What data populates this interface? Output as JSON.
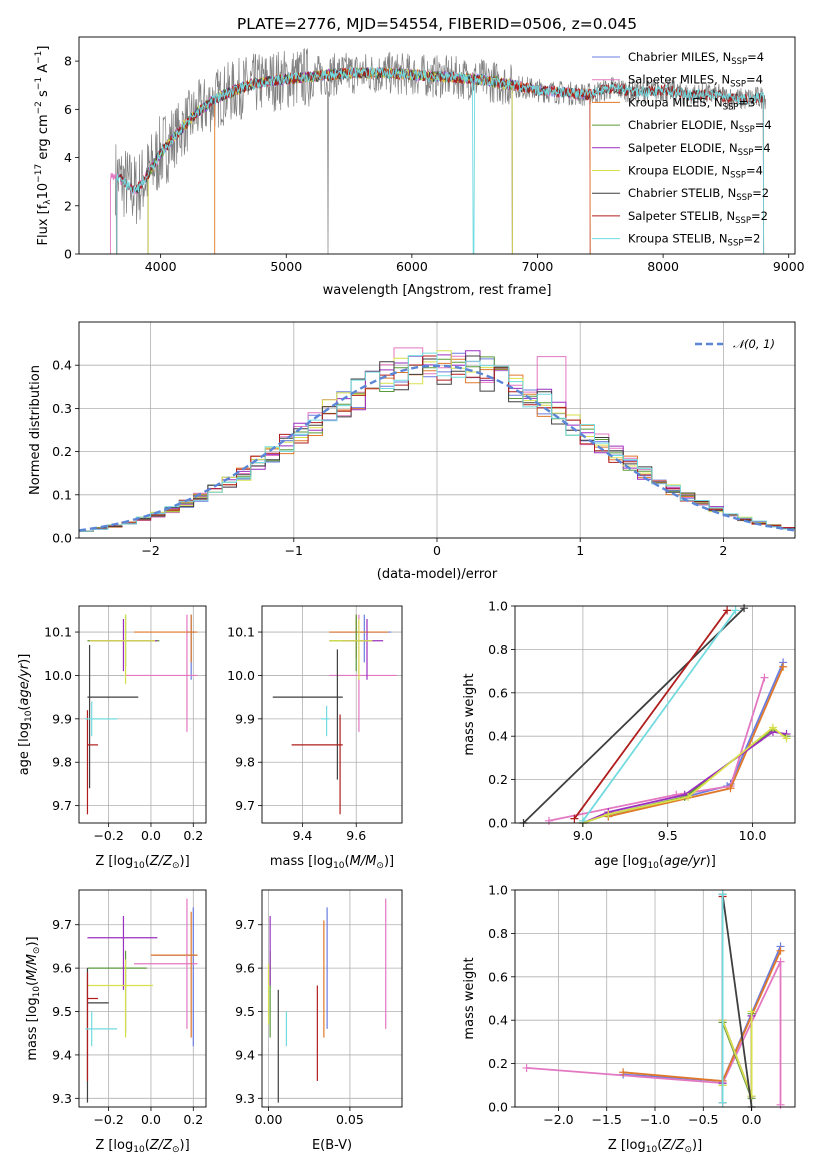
{
  "figure_title": "PLATE=2776, MJD=54554, FIBERID=0506, z=0.045",
  "colors": {
    "chabrier_miles": "#6a7de0",
    "salpeter_miles": "#e377c2",
    "kroupa_miles": "#e0782a",
    "chabrier_elodie": "#5a9a3a",
    "salpeter_elodie": "#9b2fbf",
    "kroupa_elodie": "#d7e04a",
    "chabrier_stelib": "#3f3f3f",
    "salpeter_stelib": "#b01d1d",
    "kroupa_stelib": "#72dbe0",
    "gaussian": "#5b86d8"
  },
  "chart_data": [
    {
      "id": "spectrum",
      "type": "line",
      "xlabel": "wavelength [Angstrom, rest frame]",
      "ylabel": "Flux [f_λ 10^-17 erg cm^-2 s^-1 A^-1]",
      "xlim": [
        3350,
        9050
      ],
      "ylim": [
        0,
        9
      ],
      "xticks": [
        4000,
        5000,
        6000,
        7000,
        8000,
        9000
      ],
      "yticks": [
        0,
        2,
        4,
        6,
        8
      ],
      "legend_position": "upper-right",
      "legend": [
        {
          "key": "chabrier_miles",
          "label": "Chabrier MILES, N",
          "sub": "SSP",
          "tail": "=4"
        },
        {
          "key": "salpeter_miles",
          "label": "Salpeter MILES, N",
          "sub": "SSP",
          "tail": "=4"
        },
        {
          "key": "kroupa_miles",
          "label": "Kroupa MILES, N",
          "sub": "SSP",
          "tail": "=3"
        },
        {
          "key": "chabrier_elodie",
          "label": "Chabrier ELODIE, N",
          "sub": "SSP",
          "tail": "=4"
        },
        {
          "key": "salpeter_elodie",
          "label": "Salpeter ELODIE, N",
          "sub": "SSP",
          "tail": "=4"
        },
        {
          "key": "kroupa_elodie",
          "label": "Kroupa ELODIE, N",
          "sub": "SSP",
          "tail": "=4"
        },
        {
          "key": "chabrier_stelib",
          "label": "Chabrier STELIB, N",
          "sub": "SSP",
          "tail": "=2"
        },
        {
          "key": "salpeter_stelib",
          "label": "Salpeter STELIB, N",
          "sub": "SSP",
          "tail": "=2"
        },
        {
          "key": "kroupa_stelib",
          "label": "Kroupa STELIB, N",
          "sub": "SSP",
          "tail": "=2"
        }
      ],
      "continuum": {
        "wavelength": [
          3650,
          3700,
          3800,
          3900,
          4000,
          4100,
          4200,
          4300,
          4400,
          4500,
          4700,
          4900,
          5100,
          5300,
          5500,
          5800,
          6100,
          6400,
          6600,
          6800,
          7000,
          7200,
          7400,
          7600,
          7800,
          8000,
          8200,
          8400,
          8600,
          8800
        ],
        "flux": [
          3.2,
          3.0,
          2.6,
          3.3,
          4.2,
          4.8,
          5.4,
          5.9,
          6.3,
          6.6,
          7.0,
          7.2,
          7.3,
          7.4,
          7.5,
          7.5,
          7.4,
          7.3,
          7.2,
          7.0,
          6.8,
          6.7,
          6.6,
          6.9,
          6.7,
          6.8,
          6.6,
          6.6,
          6.4,
          6.5
        ]
      },
      "model_coverage": {
        "miles": [
          3600,
          7420
        ],
        "elodie": [
          3900,
          6800
        ],
        "stelib": [
          3650,
          8800
        ],
        "chabrier_miles_start": 3900,
        "kroupa_miles_start": 4430
      }
    },
    {
      "id": "residuals",
      "type": "step",
      "xlabel": "(data-model)/error",
      "ylabel": "Normed distribution",
      "xlim": [
        -2.5,
        2.5
      ],
      "ylim": [
        0,
        0.5
      ],
      "xticks": [
        -2,
        -1,
        0,
        1,
        2
      ],
      "yticks": [
        0.0,
        0.1,
        0.2,
        0.3,
        0.4
      ],
      "legend_label": "𝒩(0, 1)",
      "legend_position": "top-right"
    },
    {
      "id": "z_age",
      "type": "errorbar",
      "xlabel": "Z [log10(Z/Z⊙)]",
      "ylabel": "age [log10(age/yr)]",
      "xlim": [
        -0.34,
        0.26
      ],
      "ylim": [
        9.66,
        10.16
      ],
      "xticks": [
        -0.2,
        0.0,
        0.2
      ],
      "yticks": [
        9.7,
        9.8,
        9.9,
        10.0,
        10.1
      ],
      "points": [
        {
          "key": "chabrier_miles",
          "x": 0.19,
          "y": 10.1,
          "xlo": 0.17,
          "xhi": 0.21,
          "ylo": 9.99,
          "yhi": 10.14
        },
        {
          "key": "salpeter_miles",
          "x": 0.17,
          "y": 10.0,
          "xlo": -0.12,
          "xhi": 0.22,
          "ylo": 9.87,
          "yhi": 10.14
        },
        {
          "key": "kroupa_miles",
          "x": 0.19,
          "y": 10.1,
          "xlo": -0.08,
          "xhi": 0.22,
          "ylo": 10.03,
          "yhi": 10.14
        },
        {
          "key": "chabrier_elodie",
          "x": -0.12,
          "y": 10.08,
          "xlo": -0.3,
          "xhi": 0.04,
          "ylo": 10.02,
          "yhi": 10.14
        },
        {
          "key": "salpeter_elodie",
          "x": -0.13,
          "y": 10.08,
          "xlo": -0.29,
          "xhi": 0.03,
          "ylo": 10.01,
          "yhi": 10.13
        },
        {
          "key": "kroupa_elodie",
          "x": -0.12,
          "y": 10.08,
          "xlo": -0.29,
          "xhi": 0.02,
          "ylo": 9.98,
          "yhi": 10.14
        },
        {
          "key": "chabrier_stelib",
          "x": -0.29,
          "y": 9.95,
          "xlo": -0.3,
          "xhi": -0.06,
          "ylo": 9.74,
          "yhi": 10.07
        },
        {
          "key": "salpeter_stelib",
          "x": -0.3,
          "y": 9.84,
          "xlo": -0.3,
          "xhi": -0.25,
          "ylo": 9.68,
          "yhi": 9.92
        },
        {
          "key": "kroupa_stelib",
          "x": -0.28,
          "y": 9.9,
          "xlo": -0.31,
          "xhi": -0.16,
          "ylo": 9.86,
          "yhi": 9.94
        }
      ]
    },
    {
      "id": "mass_age",
      "type": "errorbar",
      "xlabel": "mass [log10(M/M⊙)]",
      "ylabel": "",
      "xlim": [
        9.25,
        9.77
      ],
      "ylim": [
        9.66,
        10.16
      ],
      "xticks": [
        9.4,
        9.6
      ],
      "yticks": [
        9.7,
        9.8,
        9.9,
        10.0,
        10.1
      ],
      "points": [
        {
          "key": "chabrier_miles",
          "x": 9.63,
          "y": 10.1,
          "xlo": 9.5,
          "xhi": 9.73,
          "ylo": 10.03,
          "yhi": 10.14
        },
        {
          "key": "salpeter_miles",
          "x": 9.61,
          "y": 10.0,
          "xlo": 9.5,
          "xhi": 9.75,
          "ylo": 9.87,
          "yhi": 10.14
        },
        {
          "key": "kroupa_miles",
          "x": 9.6,
          "y": 10.1,
          "xlo": 9.5,
          "xhi": 9.72,
          "ylo": 10.04,
          "yhi": 10.14
        },
        {
          "key": "chabrier_elodie",
          "x": 9.6,
          "y": 10.08,
          "xlo": 9.5,
          "xhi": 9.66,
          "ylo": 10.01,
          "yhi": 10.14
        },
        {
          "key": "salpeter_elodie",
          "x": 9.64,
          "y": 10.08,
          "xlo": 9.55,
          "xhi": 9.7,
          "ylo": 9.99,
          "yhi": 10.13
        },
        {
          "key": "kroupa_elodie",
          "x": 9.61,
          "y": 10.08,
          "xlo": 9.5,
          "xhi": 9.66,
          "ylo": 9.99,
          "yhi": 10.13
        },
        {
          "key": "chabrier_stelib",
          "x": 9.53,
          "y": 9.95,
          "xlo": 9.29,
          "xhi": 9.55,
          "ylo": 9.76,
          "yhi": 10.06
        },
        {
          "key": "salpeter_stelib",
          "x": 9.54,
          "y": 9.84,
          "xlo": 9.36,
          "xhi": 9.55,
          "ylo": 9.68,
          "yhi": 9.91
        },
        {
          "key": "kroupa_stelib",
          "x": 9.49,
          "y": 9.9,
          "xlo": 9.47,
          "xhi": 9.5,
          "ylo": 9.86,
          "yhi": 9.93
        }
      ]
    },
    {
      "id": "age_weight",
      "type": "line",
      "xlabel": "age [log10(age/yr)]",
      "ylabel": "mass weight",
      "xlim": [
        8.6,
        10.25
      ],
      "ylim": [
        0,
        1
      ],
      "xticks": [
        9.0,
        9.5,
        10.0
      ],
      "yticks": [
        0.0,
        0.2,
        0.4,
        0.6,
        0.8,
        1.0
      ],
      "series": [
        {
          "key": "chabrier_miles",
          "x": [
            9.15,
            9.85,
            9.87,
            10.18
          ],
          "y": [
            0.03,
            0.17,
            0.18,
            0.74
          ]
        },
        {
          "key": "salpeter_miles",
          "x": [
            8.8,
            9.55,
            9.87,
            10.07
          ],
          "y": [
            0.01,
            0.13,
            0.17,
            0.67
          ]
        },
        {
          "key": "kroupa_miles",
          "x": [
            9.15,
            9.87,
            10.18
          ],
          "y": [
            0.03,
            0.16,
            0.72
          ]
        },
        {
          "key": "chabrier_elodie",
          "x": [
            9.0,
            9.15,
            9.6,
            10.12,
            10.2
          ],
          "y": [
            0.0,
            0.04,
            0.12,
            0.43,
            0.4
          ]
        },
        {
          "key": "salpeter_elodie",
          "x": [
            9.0,
            9.15,
            9.6,
            10.12,
            10.2
          ],
          "y": [
            0.0,
            0.05,
            0.13,
            0.42,
            0.41
          ]
        },
        {
          "key": "kroupa_elodie",
          "x": [
            9.0,
            9.15,
            9.62,
            10.12,
            10.2
          ],
          "y": [
            0.0,
            0.04,
            0.12,
            0.44,
            0.39
          ]
        },
        {
          "key": "chabrier_stelib",
          "x": [
            8.65,
            9.95
          ],
          "y": [
            0.0,
            0.99
          ]
        },
        {
          "key": "salpeter_stelib",
          "x": [
            8.95,
            9.85
          ],
          "y": [
            0.02,
            0.98
          ]
        },
        {
          "key": "kroupa_stelib",
          "x": [
            9.0,
            9.9
          ],
          "y": [
            0.01,
            0.98
          ]
        }
      ]
    },
    {
      "id": "z_mass",
      "type": "errorbar",
      "xlabel": "Z [log10(Z/Z⊙)]",
      "ylabel": "mass [log10(M/M⊙)]",
      "xlim": [
        -0.34,
        0.26
      ],
      "ylim": [
        9.28,
        9.78
      ],
      "xticks": [
        -0.2,
        0.0,
        0.2
      ],
      "yticks": [
        9.3,
        9.4,
        9.5,
        9.6,
        9.7
      ],
      "points": [
        {
          "key": "chabrier_miles",
          "x": 0.2,
          "y": 9.63,
          "xlo": 0.01,
          "xhi": 0.22,
          "ylo": 9.42,
          "yhi": 9.74
        },
        {
          "key": "salpeter_miles",
          "x": 0.17,
          "y": 9.61,
          "xlo": -0.08,
          "xhi": 0.22,
          "ylo": 9.46,
          "yhi": 9.76
        },
        {
          "key": "kroupa_miles",
          "x": 0.19,
          "y": 9.63,
          "xlo": 0.0,
          "xhi": 0.22,
          "ylo": 9.44,
          "yhi": 9.73
        },
        {
          "key": "chabrier_elodie",
          "x": -0.12,
          "y": 9.6,
          "xlo": -0.3,
          "xhi": -0.02,
          "ylo": 9.45,
          "yhi": 9.64
        },
        {
          "key": "salpeter_elodie",
          "x": -0.13,
          "y": 9.67,
          "xlo": -0.3,
          "xhi": 0.03,
          "ylo": 9.55,
          "yhi": 9.72
        },
        {
          "key": "kroupa_elodie",
          "x": -0.12,
          "y": 9.56,
          "xlo": -0.3,
          "xhi": 0.01,
          "ylo": 9.44,
          "yhi": 9.62
        },
        {
          "key": "chabrier_stelib",
          "x": -0.3,
          "y": 9.52,
          "xlo": -0.3,
          "xhi": -0.2,
          "ylo": 9.29,
          "yhi": 9.6
        },
        {
          "key": "salpeter_stelib",
          "x": -0.3,
          "y": 9.53,
          "xlo": -0.3,
          "xhi": -0.25,
          "ylo": 9.34,
          "yhi": 9.59
        },
        {
          "key": "kroupa_stelib",
          "x": -0.28,
          "y": 9.46,
          "xlo": -0.31,
          "xhi": -0.16,
          "ylo": 9.42,
          "yhi": 9.5
        }
      ]
    },
    {
      "id": "ebv_mass",
      "type": "errorbar",
      "xlabel": "E(B-V)",
      "ylabel": "",
      "xlim": [
        -0.004,
        0.082
      ],
      "ylim": [
        9.28,
        9.78
      ],
      "xticks": [
        0.0,
        0.05
      ],
      "xticklabels": [
        "0.00",
        "0.05"
      ],
      "yticks": [
        9.3,
        9.4,
        9.5,
        9.6,
        9.7
      ],
      "points": [
        {
          "key": "chabrier_miles",
          "x": 0.036,
          "y": 9.63,
          "ylo": 9.46,
          "yhi": 9.74
        },
        {
          "key": "salpeter_miles",
          "x": 0.072,
          "y": 9.61,
          "ylo": 9.46,
          "yhi": 9.76
        },
        {
          "key": "kroupa_miles",
          "x": 0.034,
          "y": 9.63,
          "ylo": 9.44,
          "yhi": 9.71
        },
        {
          "key": "chabrier_elodie",
          "x": 0.001,
          "y": 9.6,
          "ylo": 9.44,
          "yhi": 9.64
        },
        {
          "key": "salpeter_elodie",
          "x": 0.001,
          "y": 9.67,
          "ylo": 9.56,
          "yhi": 9.72
        },
        {
          "key": "kroupa_elodie",
          "x": 0.0,
          "y": 9.56,
          "ylo": 9.47,
          "yhi": 9.61
        },
        {
          "key": "chabrier_stelib",
          "x": 0.006,
          "y": 9.52,
          "ylo": 9.29,
          "yhi": 9.55
        },
        {
          "key": "salpeter_stelib",
          "x": 0.03,
          "y": 9.53,
          "ylo": 9.34,
          "yhi": 9.56
        },
        {
          "key": "kroupa_stelib",
          "x": 0.011,
          "y": 9.46,
          "ylo": 9.42,
          "yhi": 9.5
        }
      ]
    },
    {
      "id": "z_weight",
      "type": "line",
      "xlabel": "Z [log10(Z/Z⊙)]",
      "ylabel": "mass weight",
      "xlim": [
        -2.45,
        0.45
      ],
      "ylim": [
        0,
        1
      ],
      "xticks": [
        -2.0,
        -1.5,
        -1.0,
        -0.5,
        0.0
      ],
      "yticks": [
        0.0,
        0.2,
        0.4,
        0.6,
        0.8,
        1.0
      ],
      "series": [
        {
          "key": "chabrier_miles",
          "x": [
            -1.33,
            -0.3,
            0.3
          ],
          "y": [
            0.15,
            0.12,
            0.74
          ]
        },
        {
          "key": "salpeter_miles",
          "x": [
            -2.33,
            -0.3,
            0.3,
            0.3
          ],
          "y": [
            0.18,
            0.11,
            0.67,
            0.01
          ]
        },
        {
          "key": "kroupa_miles",
          "x": [
            -1.33,
            -0.3,
            0.3
          ],
          "y": [
            0.16,
            0.12,
            0.72
          ]
        },
        {
          "key": "chabrier_elodie",
          "x": [
            -0.3,
            -0.3,
            0.0,
            0.0
          ],
          "y": [
            0.1,
            0.39,
            0.04,
            0.43
          ]
        },
        {
          "key": "salpeter_elodie",
          "x": [
            -0.3,
            -0.3,
            0.0,
            0.0
          ],
          "y": [
            0.11,
            0.4,
            0.05,
            0.42
          ]
        },
        {
          "key": "kroupa_elodie",
          "x": [
            -0.3,
            -0.3,
            0.0,
            0.0
          ],
          "y": [
            0.1,
            0.4,
            0.05,
            0.44
          ]
        },
        {
          "key": "chabrier_stelib",
          "x": [
            -0.3,
            0.0
          ],
          "y": [
            0.98,
            0.0
          ]
        },
        {
          "key": "salpeter_stelib",
          "x": [
            -0.3,
            -0.3
          ],
          "y": [
            0.97,
            0.02
          ]
        },
        {
          "key": "kroupa_stelib",
          "x": [
            -0.3,
            -0.3
          ],
          "y": [
            0.98,
            0.02
          ]
        }
      ]
    }
  ]
}
